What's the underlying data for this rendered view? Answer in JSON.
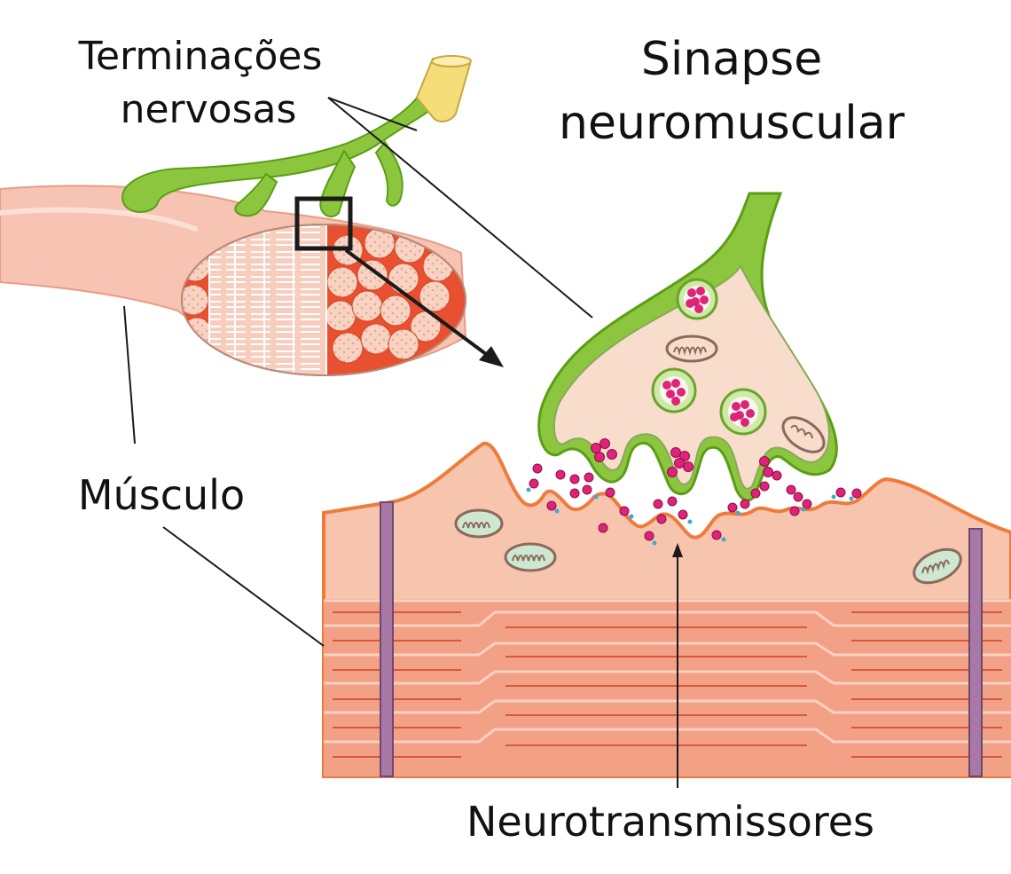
{
  "title": {
    "line1": "Sinapse",
    "line2": "neuromuscular"
  },
  "labels": {
    "nerve_endings_line1": "Terminações",
    "nerve_endings_line2": "nervosas",
    "muscle": "Músculo",
    "neurotransmitters": "Neurotransmissores"
  },
  "colors": {
    "nerve_green": "#8cc63f",
    "nerve_green_dark": "#5a9e16",
    "axon_yellow": "#f5dd7a",
    "muscle_pink": "#f7c3b2",
    "fascicle_red": "#e8502f",
    "fiber_salmon": "#f4a88c",
    "membrane_orange": "#ef7b3b",
    "terminal_cream": "#f8dccc",
    "vesicle_magenta": "#e0237a",
    "receptor_blue": "#3fa9d8",
    "t_tubule_purple": "#a878a6"
  },
  "icons": {
    "mitochondrion": "mitochondrion-icon",
    "vesicle": "synaptic-vesicle-icon",
    "zoom_box": "magnify-box-icon"
  }
}
